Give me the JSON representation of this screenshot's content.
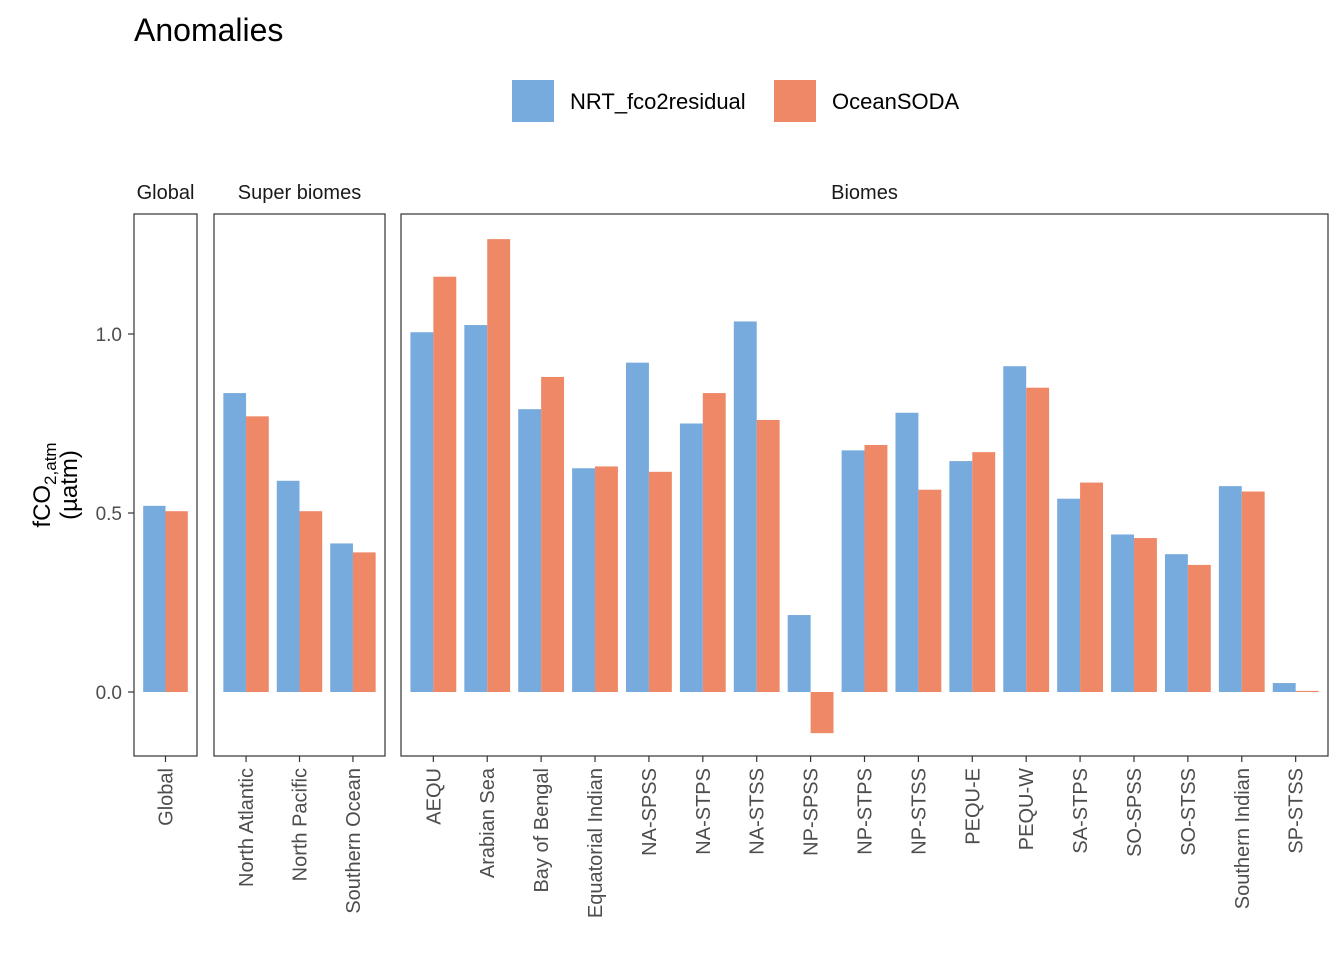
{
  "chart_data": {
    "type": "bar",
    "title": "Anomalies",
    "ylabel_main": "fCO",
    "ylabel_sub": "2,atm",
    "ylabel_unit": "(µatm)",
    "ylim": [
      -0.18,
      1.33
    ],
    "yticks": [
      0.0,
      0.5,
      1.0
    ],
    "ytick_labels": [
      "0.0",
      "0.5",
      "1.0"
    ],
    "legend": {
      "position": "top",
      "entries": [
        {
          "name": "NRT_fco2residual",
          "color": "#77aadd"
        },
        {
          "name": "OceanSODA",
          "color": "#ee8866"
        }
      ]
    },
    "facets": [
      {
        "label": "Global",
        "categories": [
          "Global"
        ],
        "series": [
          {
            "name": "NRT_fco2residual",
            "values": [
              0.52
            ]
          },
          {
            "name": "OceanSODA",
            "values": [
              0.505
            ]
          }
        ]
      },
      {
        "label": "Super biomes",
        "categories": [
          "North Atlantic",
          "North Pacific",
          "Southern Ocean"
        ],
        "series": [
          {
            "name": "NRT_fco2residual",
            "values": [
              0.835,
              0.59,
              0.415
            ]
          },
          {
            "name": "OceanSODA",
            "values": [
              0.77,
              0.505,
              0.39
            ]
          }
        ]
      },
      {
        "label": "Biomes",
        "categories": [
          "AEQU",
          "Arabian Sea",
          "Bay of Bengal",
          "Equatorial Indian",
          "NA-SPSS",
          "NA-STPS",
          "NA-STSS",
          "NP-SPSS",
          "NP-STPS",
          "NP-STSS",
          "PEQU-E",
          "PEQU-W",
          "SA-STPS",
          "SO-SPSS",
          "SO-STSS",
          "Southern Indian",
          "SP-STSS"
        ],
        "series": [
          {
            "name": "NRT_fco2residual",
            "values": [
              1.005,
              1.025,
              0.79,
              0.625,
              0.92,
              0.75,
              1.035,
              0.215,
              0.675,
              0.78,
              0.645,
              0.91,
              0.54,
              0.44,
              0.385,
              0.575,
              0.025
            ]
          },
          {
            "name": "OceanSODA",
            "values": [
              1.16,
              1.265,
              0.88,
              0.63,
              0.615,
              0.835,
              0.76,
              -0.115,
              0.69,
              0.565,
              0.67,
              0.85,
              0.585,
              0.43,
              0.355,
              0.56,
              0.003
            ]
          }
        ]
      }
    ]
  }
}
